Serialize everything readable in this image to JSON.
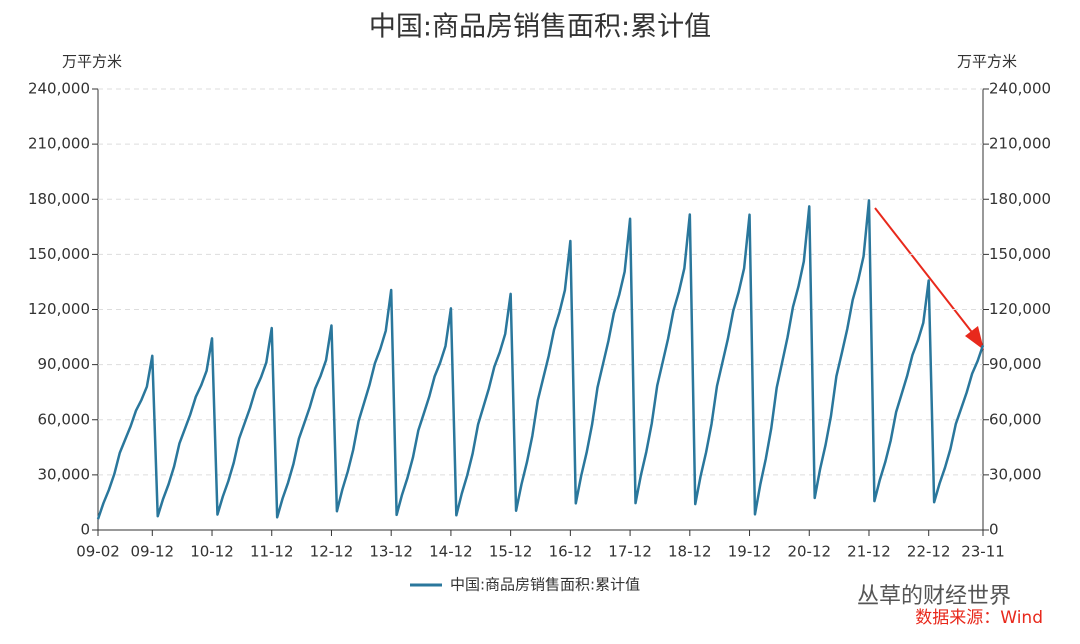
{
  "chart_data": {
    "type": "line",
    "title": "中国:商品房销售面积:累计值",
    "y_label": "万平方米",
    "y2_label": "万平方米",
    "categories": [
      "09-02",
      null,
      null,
      null,
      null,
      null,
      null,
      null,
      null,
      null,
      "09-12",
      null,
      null,
      null,
      null,
      null,
      null,
      null,
      null,
      null,
      null,
      "10-12",
      null,
      null,
      null,
      null,
      null,
      null,
      null,
      null,
      null,
      null,
      "11-12",
      null,
      null,
      null,
      null,
      null,
      null,
      null,
      null,
      null,
      null,
      "12-12",
      null,
      null,
      null,
      null,
      null,
      null,
      null,
      null,
      null,
      null,
      "13-12",
      null,
      null,
      null,
      null,
      null,
      null,
      null,
      null,
      null,
      null,
      "14-12",
      null,
      null,
      null,
      null,
      null,
      null,
      null,
      null,
      null,
      null,
      "15-12",
      null,
      null,
      null,
      null,
      null,
      null,
      null,
      null,
      null,
      null,
      "16-12",
      null,
      null,
      null,
      null,
      null,
      null,
      null,
      null,
      null,
      null,
      "17-12",
      null,
      null,
      null,
      null,
      null,
      null,
      null,
      null,
      null,
      null,
      "18-12",
      null,
      null,
      null,
      null,
      null,
      null,
      null,
      null,
      null,
      null,
      "19-12",
      null,
      null,
      null,
      null,
      null,
      null,
      null,
      null,
      null,
      null,
      "20-12",
      null,
      null,
      null,
      null,
      null,
      null,
      null,
      null,
      null,
      null,
      "21-12",
      null,
      null,
      null,
      null,
      null,
      null,
      null,
      null,
      null,
      null,
      "22-12",
      null,
      null,
      null,
      null,
      null,
      null,
      null,
      null,
      null,
      "23-11"
    ],
    "series": [
      {
        "name": "中国:商品房销售面积:累计值",
        "color": "#2a779c",
        "values": [
          5900,
          14600,
          21800,
          30400,
          41900,
          49200,
          56400,
          65000,
          70800,
          78000,
          94800,
          7500,
          17000,
          24900,
          34400,
          47100,
          55000,
          62900,
          72400,
          78700,
          86600,
          104300,
          8400,
          18300,
          26600,
          36600,
          49800,
          58100,
          66400,
          76300,
          82900,
          91200,
          109900,
          6900,
          17200,
          25700,
          36000,
          49700,
          58200,
          66800,
          77000,
          83900,
          92400,
          111300,
          10200,
          22000,
          31800,
          43600,
          59300,
          69100,
          78900,
          90700,
          98600,
          108400,
          130600,
          8200,
          19200,
          28400,
          39400,
          54200,
          63300,
          72500,
          83600,
          90900,
          100100,
          120600,
          8000,
          19800,
          29700,
          41600,
          57400,
          67200,
          77100,
          88900,
          96800,
          106700,
          128500,
          10500,
          24900,
          36900,
          51300,
          70600,
          82600,
          94600,
          109000,
          118600,
          130600,
          157300,
          14500,
          29600,
          42200,
          57400,
          77600,
          90200,
          102800,
          117900,
          128000,
          140600,
          169400,
          14600,
          29900,
          42700,
          58100,
          78600,
          91300,
          104100,
          119500,
          129700,
          142500,
          171700,
          14100,
          29500,
          42300,
          57700,
          78300,
          91100,
          103900,
          119300,
          129600,
          142400,
          171600,
          8500,
          25000,
          38800,
          55300,
          77400,
          91100,
          104900,
          121400,
          132400,
          146200,
          176100,
          17400,
          33200,
          46300,
          62100,
          83700,
          96300,
          109400,
          125200,
          135800,
          148900,
          179400,
          15700,
          27300,
          37000,
          48700,
          64200,
          73900,
          83600,
          95200,
          103000,
          112700,
          135800,
          15100,
          25300,
          33900,
          44100,
          57800,
          66300,
          74900,
          85100,
          91900,
          100500
        ]
      }
    ],
    "ylim": [
      0,
      240000
    ],
    "yticks": [
      0,
      {
        "value": 30000,
        "label": "30,000"
      },
      {
        "value": 60000,
        "label": "60,000"
      },
      {
        "value": 90000,
        "label": "90,000"
      },
      {
        "value": 120000,
        "label": "120,000"
      },
      {
        "value": 150000,
        "label": "150,000"
      },
      {
        "value": 180000,
        "label": "180,000"
      },
      {
        "value": 210000,
        "label": "210,000"
      },
      {
        "value": 240000,
        "label": "240,000"
      }
    ],
    "y2lim": [
      0,
      240000
    ],
    "y2ticks": [
      0,
      {
        "value": 30000,
        "label": "30,000"
      },
      {
        "value": 60000,
        "label": "60,000"
      },
      {
        "value": 90000,
        "label": "90,000"
      },
      {
        "value": 120000,
        "label": "120,000"
      },
      {
        "value": 150000,
        "label": "150,000"
      },
      {
        "value": 180000,
        "label": "180,000"
      },
      {
        "value": 210000,
        "label": "210,000"
      },
      {
        "value": 240000,
        "label": "240,000"
      }
    ],
    "grid": true,
    "legend": "bottom",
    "watermark": "丛草的财经世界",
    "source": "数据来源：Wind"
  }
}
